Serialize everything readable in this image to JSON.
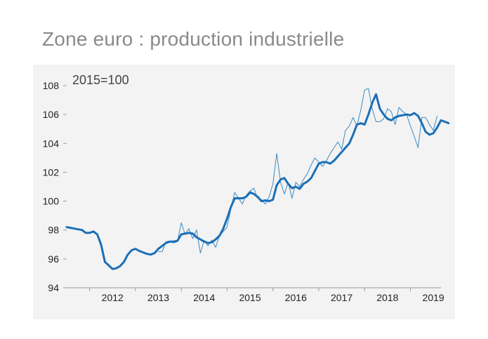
{
  "title": "Zone euro : production industrielle",
  "chart_data": {
    "type": "line",
    "title": "Zone euro : production industrielle",
    "annotation": "2015=100",
    "xlabel": "",
    "ylabel": "",
    "x_ticks": [
      "2012",
      "2013",
      "2014",
      "2015",
      "2016",
      "2017",
      "2018",
      "2019"
    ],
    "y_ticks": [
      94,
      96,
      98,
      100,
      102,
      104,
      106,
      108
    ],
    "ylim": [
      94,
      108
    ],
    "xlim": [
      "2011-07",
      "2019-09"
    ],
    "grid": false,
    "colors": {
      "monthly": "#3a8ac2",
      "smoothed": "#1a6fb7"
    },
    "series": [
      {
        "name": "",
        "role": "monthly",
        "x_start": "2013-07",
        "values": [
          96.5,
          96.5,
          97.2,
          97.2,
          97.1,
          97.2,
          98.5,
          97.7,
          98.1,
          97.4,
          98.0,
          96.4,
          97.3,
          96.9,
          97.3,
          96.8,
          97.6,
          97.9,
          98.2,
          99.5,
          100.6,
          100.2,
          99.8,
          100.4,
          100.7,
          100.9,
          100.2,
          100.1,
          99.8,
          100.3,
          101.2,
          103.3,
          101.3,
          100.5,
          101.3,
          100.2,
          101.3,
          101.0,
          101.5,
          101.9,
          102.5,
          103.0,
          102.7,
          102.4,
          102.8,
          103.3,
          103.7,
          104.1,
          103.6,
          104.9,
          105.2,
          105.8,
          105.2,
          106.3,
          107.7,
          107.8,
          106.4,
          105.5,
          105.5,
          105.7,
          106.4,
          106.2,
          105.3,
          106.5,
          106.2,
          106.0,
          105.2,
          104.5,
          103.7,
          105.8,
          105.8,
          105.3,
          104.9,
          105.9
        ]
      },
      {
        "name": "",
        "role": "smoothed",
        "x_start": "2011-07",
        "values": [
          98.2,
          98.15,
          98.1,
          98.05,
          98.0,
          97.8,
          97.8,
          97.9,
          97.7,
          97.0,
          95.8,
          95.55,
          95.3,
          95.35,
          95.5,
          95.8,
          96.3,
          96.6,
          96.7,
          96.55,
          96.45,
          96.35,
          96.3,
          96.4,
          96.7,
          96.9,
          97.1,
          97.2,
          97.2,
          97.25,
          97.7,
          97.75,
          97.8,
          97.75,
          97.5,
          97.35,
          97.2,
          97.1,
          97.15,
          97.35,
          97.6,
          98.1,
          98.8,
          99.6,
          100.2,
          100.2,
          100.2,
          100.3,
          100.6,
          100.5,
          100.3,
          100.0,
          100.05,
          100.0,
          100.1,
          101.1,
          101.5,
          101.6,
          101.2,
          100.9,
          101.0,
          100.85,
          101.2,
          101.35,
          101.6,
          102.1,
          102.6,
          102.7,
          102.7,
          102.6,
          102.8,
          103.1,
          103.4,
          103.7,
          104.0,
          104.6,
          105.3,
          105.4,
          105.3,
          106.0,
          106.8,
          107.4,
          106.4,
          106.0,
          105.7,
          105.6,
          105.8,
          105.9,
          105.95,
          106.0,
          105.95,
          106.1,
          105.9,
          105.4,
          104.8,
          104.6,
          104.7,
          105.1,
          105.6,
          105.5,
          105.4
        ]
      }
    ]
  }
}
